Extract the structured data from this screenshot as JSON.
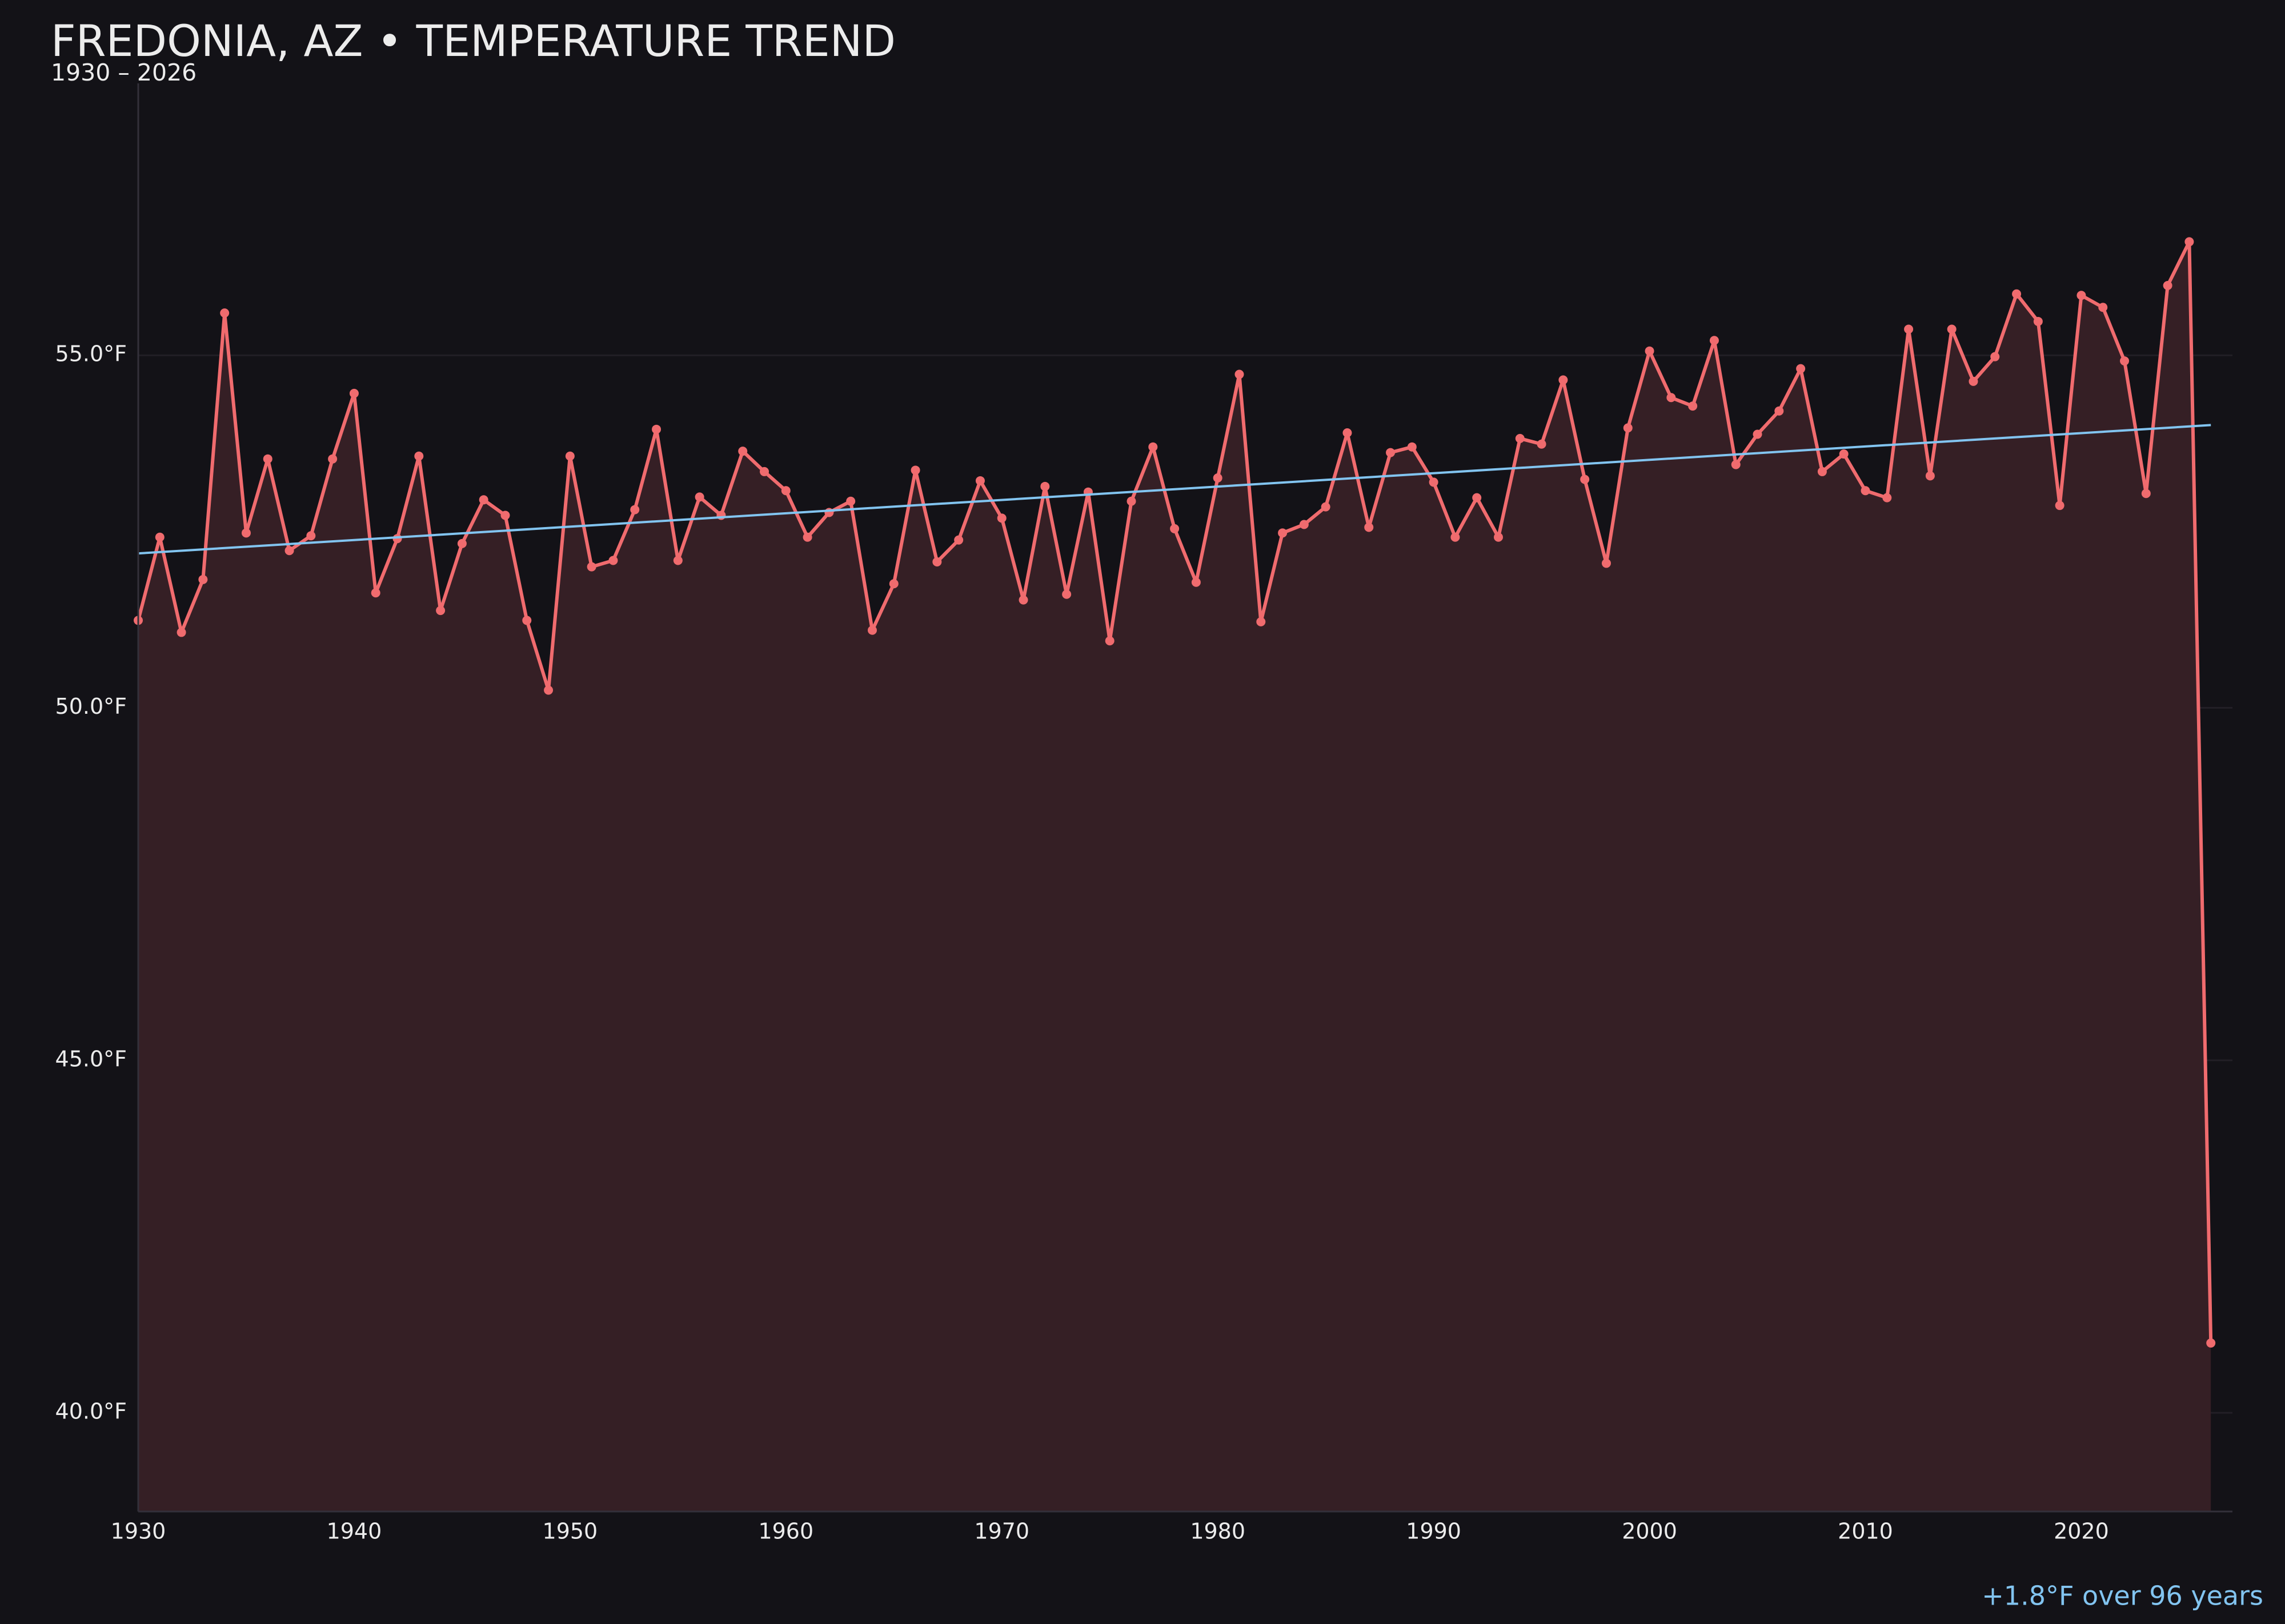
{
  "chart_data": {
    "type": "line",
    "title": "FREDONIA, AZ • TEMPERATURE TREND",
    "subtitle": "1930 – 2026",
    "annotation": "+1.8°F over 96 years",
    "x": [
      1930,
      1931,
      1932,
      1933,
      1934,
      1935,
      1936,
      1937,
      1938,
      1939,
      1940,
      1941,
      1942,
      1943,
      1944,
      1945,
      1946,
      1947,
      1948,
      1949,
      1950,
      1951,
      1952,
      1953,
      1954,
      1955,
      1956,
      1957,
      1958,
      1959,
      1960,
      1961,
      1962,
      1963,
      1964,
      1965,
      1966,
      1967,
      1968,
      1969,
      1970,
      1971,
      1972,
      1973,
      1974,
      1975,
      1976,
      1977,
      1978,
      1979,
      1980,
      1981,
      1982,
      1983,
      1984,
      1985,
      1986,
      1987,
      1988,
      1989,
      1990,
      1991,
      1992,
      1993,
      1994,
      1995,
      1996,
      1997,
      1998,
      1999,
      2000,
      2001,
      2002,
      2003,
      2004,
      2005,
      2006,
      2007,
      2008,
      2009,
      2010,
      2011,
      2012,
      2013,
      2014,
      2015,
      2016,
      2017,
      2018,
      2019,
      2020,
      2021,
      2022,
      2023,
      2024,
      2025,
      2026
    ],
    "series": [
      {
        "color": "#f06b6e",
        "values": [
          51.24,
          52.42,
          51.07,
          51.82,
          55.6,
          52.48,
          53.53,
          52.23,
          52.44,
          53.53,
          54.46,
          51.63,
          52.4,
          53.57,
          51.38,
          52.33,
          52.95,
          52.73,
          51.24,
          50.25,
          53.57,
          52.0,
          52.09,
          52.81,
          53.95,
          52.09,
          52.99,
          52.73,
          53.64,
          53.35,
          53.08,
          52.42,
          52.77,
          52.93,
          51.1,
          51.76,
          53.37,
          52.07,
          52.38,
          53.22,
          52.69,
          51.53,
          53.14,
          51.61,
          53.06,
          50.95,
          52.93,
          53.7,
          52.54,
          51.78,
          53.26,
          54.73,
          51.22,
          52.48,
          52.6,
          52.85,
          53.9,
          52.56,
          53.62,
          53.7,
          53.2,
          52.42,
          52.98,
          52.42,
          53.82,
          53.74,
          54.65,
          53.24,
          52.05,
          53.97,
          55.06,
          54.4,
          54.28,
          55.21,
          53.45,
          53.88,
          54.21,
          54.81,
          53.35,
          53.6,
          53.08,
          52.98,
          55.37,
          53.29,
          55.37,
          54.63,
          54.98,
          55.87,
          55.48,
          52.87,
          55.85,
          55.68,
          54.92,
          53.04,
          55.99,
          56.61,
          40.99
        ]
      }
    ],
    "trend": {
      "color": "#82c4f0",
      "x": [
        1930,
        2026
      ],
      "values": [
        52.19,
        54.01
      ]
    },
    "area_color": "#351f25",
    "xlim": [
      1930,
      2027
    ],
    "ylim": [
      38.6,
      59.1
    ],
    "xticks": [
      1930,
      1940,
      1950,
      1960,
      1970,
      1980,
      1990,
      2000,
      2010,
      2020
    ],
    "yticks": [
      {
        "value": 40,
        "label": "40.0°F"
      },
      {
        "value": 45,
        "label": "45.0°F"
      },
      {
        "value": 50,
        "label": "50.0°F"
      },
      {
        "value": 55,
        "label": "55.0°F"
      }
    ],
    "grid": true
  }
}
